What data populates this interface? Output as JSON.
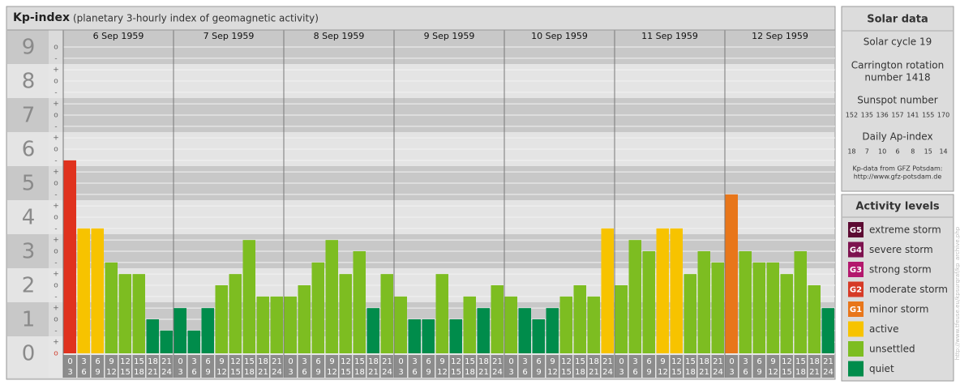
{
  "chart_data": {
    "type": "bar",
    "title": "Kp-index",
    "subtitle": "(planetary 3-hourly index of geomagnetic activity)",
    "days": [
      "6 Sep 1959",
      "7 Sep 1959",
      "8 Sep 1959",
      "9 Sep 1959",
      "10 Sep 1959",
      "11 Sep 1959",
      "12 Sep 1959"
    ],
    "hours": [
      [
        "0",
        "3"
      ],
      [
        "3",
        "6"
      ],
      [
        "6",
        "9"
      ],
      [
        "9",
        "12"
      ],
      [
        "12",
        "15"
      ],
      [
        "15",
        "18"
      ],
      [
        "18",
        "21"
      ],
      [
        "21",
        "24"
      ]
    ],
    "values": [
      5.67,
      3.67,
      3.67,
      2.67,
      2.33,
      2.33,
      1,
      0.67,
      1.33,
      0.67,
      1.33,
      2,
      2.33,
      3.33,
      1.67,
      1.67,
      1.67,
      2,
      2.67,
      3.33,
      2.33,
      3,
      1.33,
      2.33,
      1.67,
      1,
      1,
      2.33,
      1,
      1.67,
      1.33,
      2,
      1.67,
      1.33,
      1,
      1.33,
      1.67,
      2,
      1.67,
      3.67,
      2,
      3.33,
      3,
      3.67,
      3.67,
      2.33,
      3,
      2.67,
      4.67,
      3,
      2.67,
      2.67,
      2.33,
      3,
      2,
      1.33
    ],
    "colors": [
      "#e0321e",
      "#f7c300",
      "#f7c300",
      "#7dbd21",
      "#7dbd21",
      "#7dbd21",
      "#008c4b",
      "#008c4b",
      "#008c4b",
      "#008c4b",
      "#008c4b",
      "#7dbd21",
      "#7dbd21",
      "#7dbd21",
      "#7dbd21",
      "#7dbd21",
      "#7dbd21",
      "#7dbd21",
      "#7dbd21",
      "#7dbd21",
      "#7dbd21",
      "#7dbd21",
      "#008c4b",
      "#7dbd21",
      "#7dbd21",
      "#008c4b",
      "#008c4b",
      "#7dbd21",
      "#008c4b",
      "#7dbd21",
      "#008c4b",
      "#7dbd21",
      "#7dbd21",
      "#008c4b",
      "#008c4b",
      "#008c4b",
      "#7dbd21",
      "#7dbd21",
      "#7dbd21",
      "#f7c300",
      "#7dbd21",
      "#7dbd21",
      "#7dbd21",
      "#f7c300",
      "#f7c300",
      "#7dbd21",
      "#7dbd21",
      "#7dbd21",
      "#e8761a",
      "#7dbd21",
      "#7dbd21",
      "#7dbd21",
      "#7dbd21",
      "#7dbd21",
      "#7dbd21",
      "#008c4b"
    ],
    "ylim": [
      0,
      9.5
    ],
    "yticks": [
      0,
      1,
      2,
      3,
      4,
      5,
      6,
      7,
      8,
      9
    ],
    "minor_ticks": [
      {
        "value": 0,
        "label": "o"
      },
      {
        "value": 0.33,
        "label": "+"
      },
      {
        "value": 0.67,
        "label": "-"
      },
      {
        "value": 1,
        "label": "o"
      },
      {
        "value": 1.33,
        "label": "+"
      },
      {
        "value": 1.67,
        "label": "-"
      },
      {
        "value": 2,
        "label": "o"
      },
      {
        "value": 2.33,
        "label": "+"
      },
      {
        "value": 2.67,
        "label": "-"
      },
      {
        "value": 3,
        "label": "o"
      },
      {
        "value": 3.33,
        "label": "+"
      },
      {
        "value": 3.67,
        "label": "-"
      },
      {
        "value": 4,
        "label": "o"
      },
      {
        "value": 4.33,
        "label": "+"
      },
      {
        "value": 4.67,
        "label": "-"
      },
      {
        "value": 5,
        "label": "o"
      },
      {
        "value": 5.33,
        "label": "+"
      },
      {
        "value": 5.67,
        "label": "-"
      },
      {
        "value": 6,
        "label": "o"
      },
      {
        "value": 6.33,
        "label": "+"
      },
      {
        "value": 6.67,
        "label": "-"
      },
      {
        "value": 7,
        "label": "o"
      },
      {
        "value": 7.33,
        "label": "+"
      },
      {
        "value": 7.67,
        "label": "-"
      },
      {
        "value": 8,
        "label": "o"
      },
      {
        "value": 8.33,
        "label": "+"
      },
      {
        "value": 8.67,
        "label": "-"
      },
      {
        "value": 9,
        "label": "o"
      }
    ],
    "grid": true,
    "solar": {
      "title": "Solar data",
      "cycle": "Solar cycle 19",
      "carrington": [
        "Carrington rotation",
        "number 1418"
      ],
      "sunspot_title": "Sunspot number",
      "sunspot": [
        152,
        135,
        136,
        157,
        141,
        155,
        170
      ],
      "ap_title": "Daily Ap-index",
      "ap": [
        18,
        7,
        10,
        6,
        8,
        15,
        14
      ],
      "source": [
        "Kp-data from GFZ Potsdam:",
        "http://www.gfz-potsdam.de"
      ]
    },
    "legend": {
      "title": "Activity levels",
      "items": [
        {
          "badge": "G5",
          "name": "extreme storm",
          "color": "#5c0a32"
        },
        {
          "badge": "G4",
          "name": "severe storm",
          "color": "#7d124f"
        },
        {
          "badge": "G3",
          "name": "strong storm",
          "color": "#b3186d"
        },
        {
          "badge": "G2",
          "name": "moderate storm",
          "color": "#d63a26"
        },
        {
          "badge": "G1",
          "name": "minor storm",
          "color": "#e8761a"
        },
        {
          "name": "active",
          "color": "#f7c300"
        },
        {
          "name": "unsettled",
          "color": "#7dbd21"
        },
        {
          "name": "quiet",
          "color": "#008c4b"
        }
      ]
    },
    "credit": "http://www.tfeuse.eu/kpsurgraf/kp_archive.php"
  }
}
